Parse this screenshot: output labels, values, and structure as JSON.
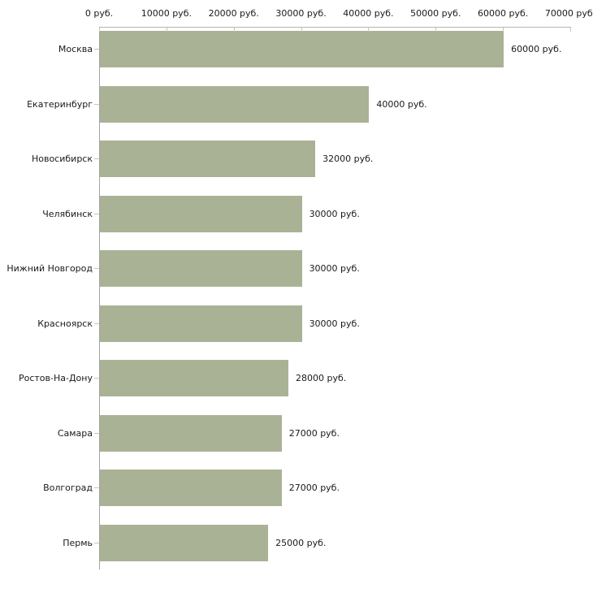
{
  "chart_data": {
    "type": "bar",
    "orientation": "horizontal",
    "title": "",
    "xlabel": "",
    "ylabel": "",
    "unit": "руб.",
    "categories": [
      "Москва",
      "Екатеринбург",
      "Новосибирск",
      "Челябинск",
      "Нижний Новгород",
      "Красноярск",
      "Ростов-На-Дону",
      "Самара",
      "Волгоград",
      "Пермь"
    ],
    "values": [
      60000,
      40000,
      32000,
      30000,
      30000,
      30000,
      28000,
      27000,
      27000,
      25000
    ],
    "value_labels": [
      "60000 руб.",
      "40000 руб.",
      "32000 руб.",
      "30000 руб.",
      "30000 руб.",
      "30000 руб.",
      "28000 руб.",
      "27000 руб.",
      "27000 руб.",
      "25000 руб."
    ],
    "x_ticks": [
      0,
      10000,
      20000,
      30000,
      40000,
      50000,
      60000,
      70000
    ],
    "x_tick_labels": [
      "0 руб.",
      "10000 руб.",
      "20000 руб.",
      "30000 руб.",
      "40000 руб.",
      "50000 руб.",
      "60000 руб.",
      "70000 руб."
    ],
    "xlim": [
      0,
      70000
    ],
    "grid": false,
    "legend": false,
    "axis_position": "top-left",
    "bar_color": "#aab296",
    "axis_line_color": "#b5b5b5",
    "y_axis_line_color": "#a3a3a3",
    "tick_mark_color": "#c9c9a6",
    "text_color": "#1a1a1a",
    "background_color": "#ffffff"
  }
}
